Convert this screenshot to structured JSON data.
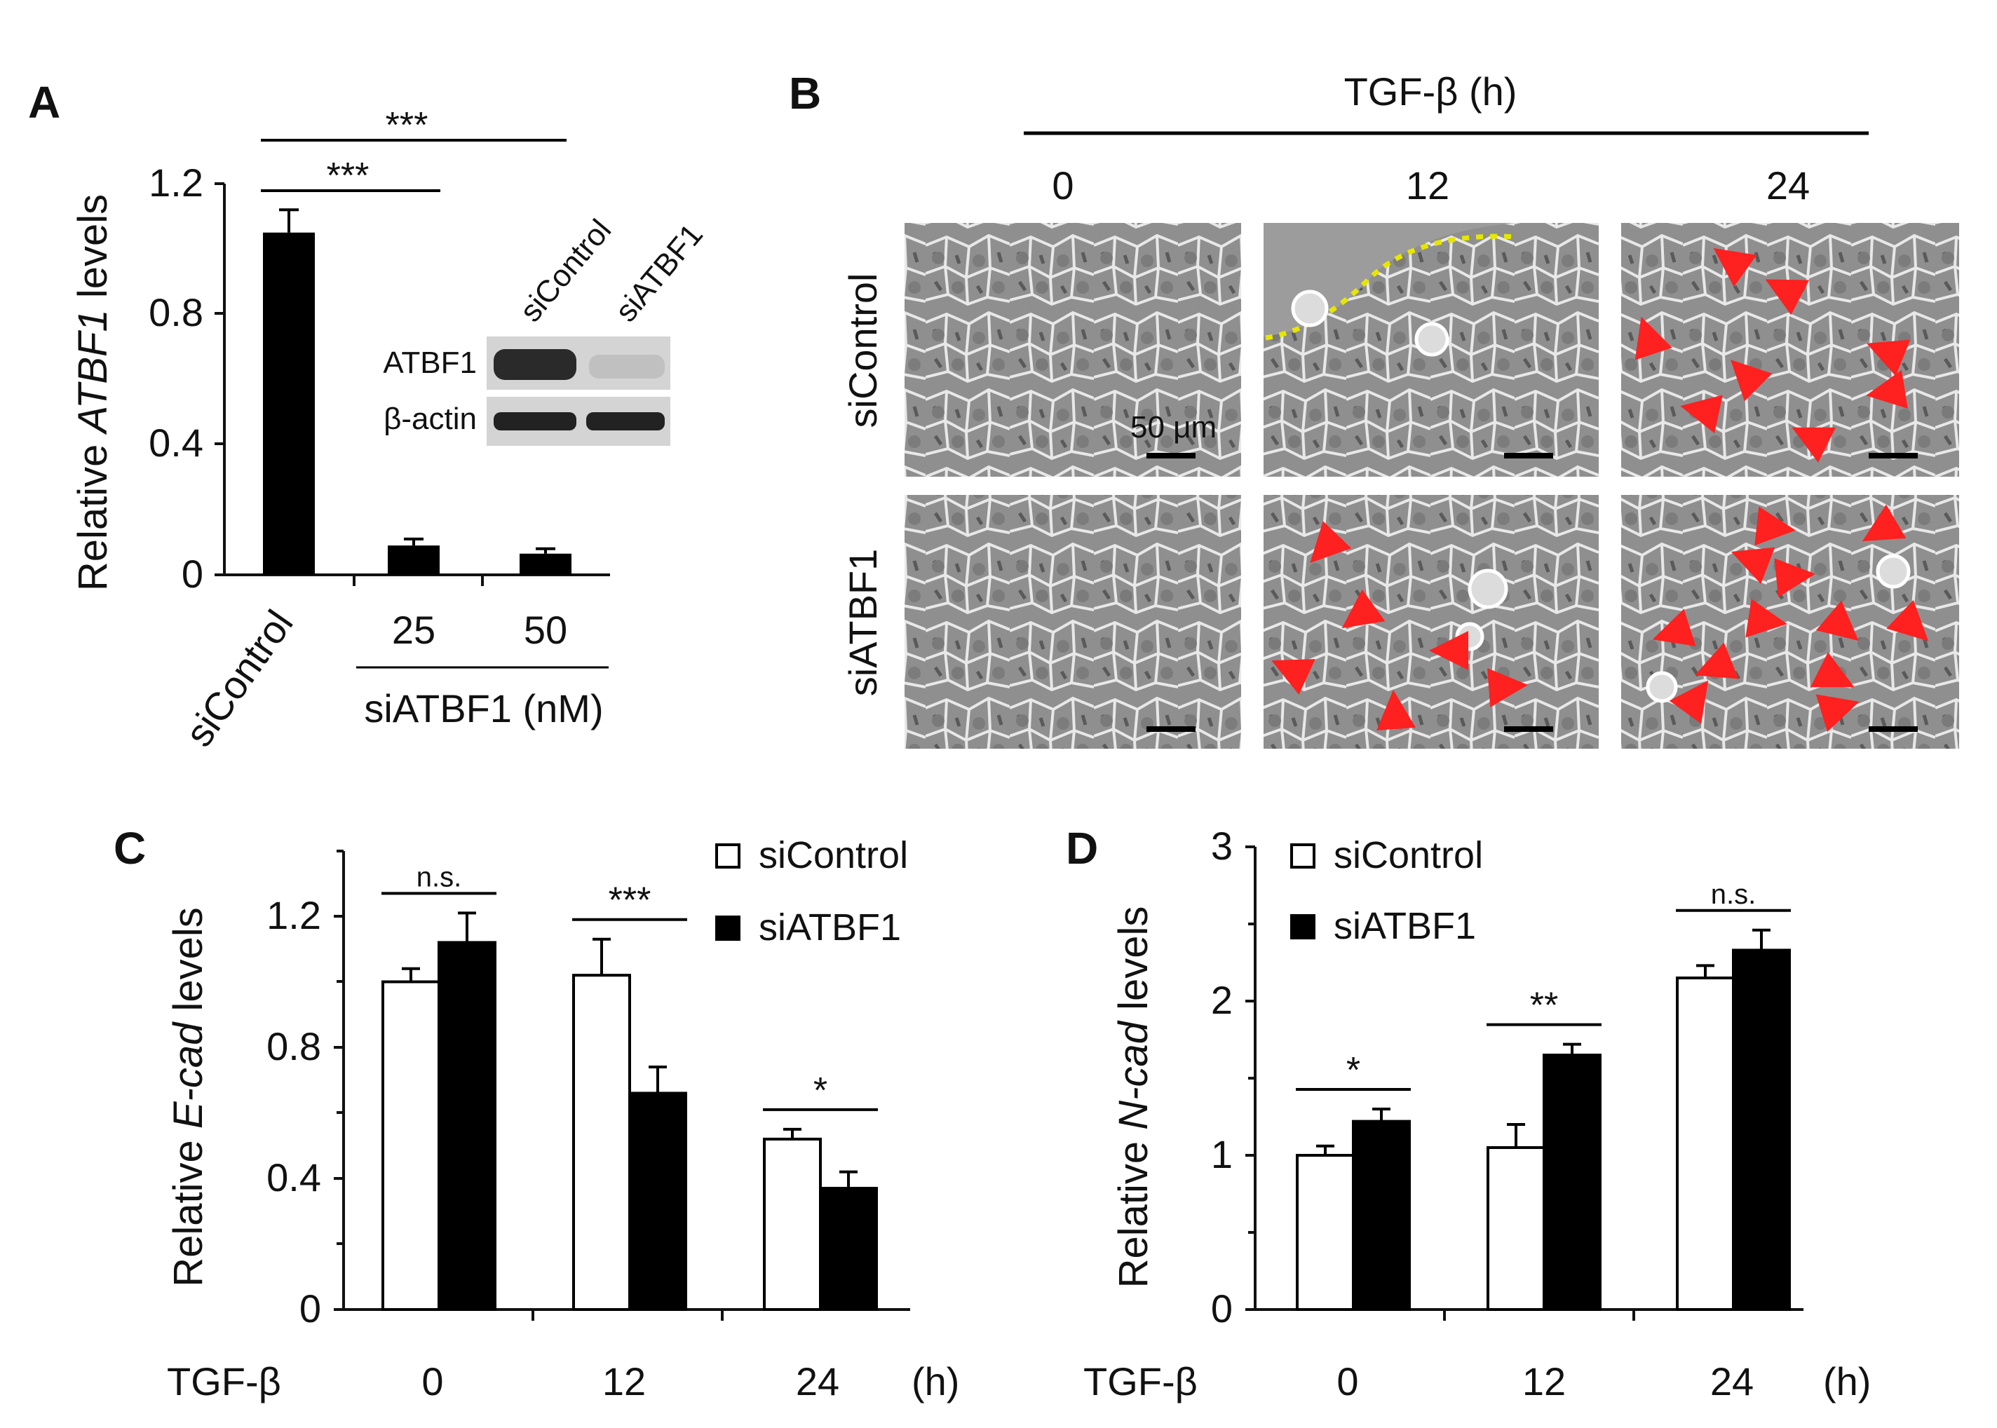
{
  "panel_labels": {
    "a": "A",
    "b": "B",
    "c": "C",
    "d": "D"
  },
  "colors": {
    "control_fill": "#ffffff",
    "atbf1_fill": "#000000",
    "arrow": "#ff2020",
    "migration_front": "#e6e600",
    "micro_bg": "#8f8f8f"
  },
  "chart_data": [
    {
      "panel": "A",
      "type": "bar",
      "ylabel_prefix": "Relative ",
      "ylabel_gene": "ATBF1",
      "ylabel_suffix": "  levels",
      "ylim": [
        0,
        1.2
      ],
      "yticks": [
        "0",
        "0.4",
        "0.8",
        "1.2"
      ],
      "categories": [
        "siControl",
        "25",
        "50"
      ],
      "values": [
        1.05,
        0.09,
        0.065
      ],
      "errors": [
        0.07,
        0.02,
        0.015
      ],
      "group_label": "siATBF1 (nM)",
      "significance": [
        {
          "from": 0,
          "to": 1,
          "label": "***"
        },
        {
          "from": 0,
          "to": 2,
          "label": "***"
        }
      ],
      "inset_blot": {
        "lanes": [
          "siControl",
          "siATBF1"
        ],
        "rows": [
          "ATBF1",
          "β-actin"
        ]
      }
    },
    {
      "panel": "C",
      "type": "bar",
      "ylabel_prefix": "Relative ",
      "ylabel_gene": "E-cad",
      "ylabel_suffix": "  levels",
      "ylim": [
        0,
        1.4
      ],
      "yticks": [
        "0",
        "0.4",
        "0.8",
        "1.2"
      ],
      "x_title": "TGF-β",
      "x_unit": "(h)",
      "categories": [
        "0",
        "12",
        "24"
      ],
      "series": [
        {
          "name": "siControl",
          "values": [
            1.0,
            1.02,
            0.52
          ],
          "errors": [
            0.04,
            0.11,
            0.03
          ]
        },
        {
          "name": "siATBF1",
          "values": [
            1.12,
            0.66,
            0.37
          ],
          "errors": [
            0.09,
            0.08,
            0.05
          ]
        }
      ],
      "significance": [
        "n.s.",
        "***",
        "*"
      ]
    },
    {
      "panel": "D",
      "type": "bar",
      "ylabel_prefix": "Relative ",
      "ylabel_gene": "N-cad",
      "ylabel_suffix": "  levels",
      "ylim": [
        0,
        3
      ],
      "yticks": [
        "0",
        "1",
        "2",
        "3"
      ],
      "x_title": "TGF-β",
      "x_unit": "(h)",
      "categories": [
        "0",
        "12",
        "24"
      ],
      "series": [
        {
          "name": "siControl",
          "values": [
            1.0,
            1.05,
            2.15
          ],
          "errors": [
            0.06,
            0.15,
            0.08
          ]
        },
        {
          "name": "siATBF1",
          "values": [
            1.22,
            1.65,
            2.33
          ],
          "errors": [
            0.08,
            0.07,
            0.13
          ]
        }
      ],
      "significance": [
        "*",
        "**",
        "n.s."
      ]
    }
  ],
  "micrographs": {
    "title": "TGF-β (h)",
    "time_points": [
      "0",
      "12",
      "24"
    ],
    "rows": [
      "siControl",
      "siATBF1"
    ],
    "scale_bar": "50 μm"
  }
}
